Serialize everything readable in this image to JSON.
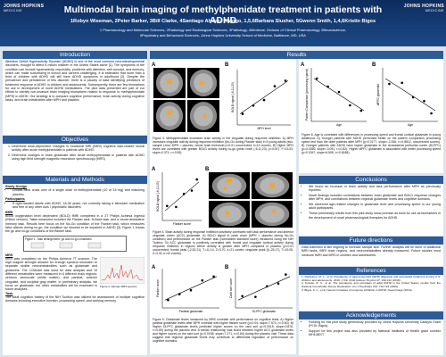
{
  "header": {
    "title": "Multimodal brain imaging of methylphenidate treatment in patients with ADHD",
    "authors": "1Robyn Wiseman, 2Peter Barker, 3Bill Clarke, 4Santiago Alvarez Arango, 1,5,6Barbara Slusher, 5Gwenn Smith, 1,4,6Kristin Bigos",
    "affiliations": [
      "1 Pharmacology and Molecular Sciences, 2Radiology and Radiological Sciences, 3Pathology, 4Medicine, Division of Clinical Pharmacology, 5Neuroscience,",
      "6Psychiatry and Behavioral Sciences, Johns Hopkins University School of Medicine, Baltimore, MD, USA"
    ],
    "logo": "JOHNS HOPKINS",
    "logo_sub": "MEDICINE"
  },
  "introduction": {
    "heading": "Introduction",
    "text": "Attention Deficit Hyperactivity Disorder (ADHD) is one of the most common neurodevelopmental disorders, thought to affect 6 million children in the United States alone [1]. The symptoms of the condition can include hyperactivity, impulsivity, problems with attention, self-concept, and memory, which can make succeeding in school and careers challenging. It is estimated that more than a third of children with ADHD will still have ADHD symptoms in adulthood [2]. Despite the prevalence and persistence of this disorder, there is a paucity of data identifying predictors of treatment response in ADHD in children and adolescents. Subsequently, there are few biomarkers for use in development of novel ADHD medications. The pilot data presented are part of our efforts to identify non-invasive brain imaging biomarkers related to response to methylphenidate (MPH) in ADHD. Our strategy is to compare cognitive performance, brain activity during cognitive tasks, and brain metabolites after MPH and placebo."
  },
  "objectives": {
    "heading": "Objectives",
    "items": [
      "Determine dose-dependent changes in functional MRI (fMRI) cognitive task-related neural activity after acute methylphenidate in patients with ADHD.",
      "Determine changes in brain glutamate after acute methylphenidate in patients with ADHD using high field strength magnetic resonance spectroscopy (MRS)."
    ]
  },
  "methods": {
    "heading": "Materials and Methods",
    "blocks": [
      {
        "title": "Study Design",
        "text": "Double-blind cross over of a single dose of methylphenidate (10 or 15 mg) and matching placebo."
      },
      {
        "title": "Participants",
        "text": "8 right-handed adults with ADHD, 18-36 years, not currently taking a stimulant medication and free of any other Axis I psychiatric disorders."
      },
      {
        "title": "fMRI",
        "text": "Blood oxygenation level dependent (BOLD) fMRI completed in a 3T Philips Achieva Ingenia (Elition version). Tasks measured included the Flanker task, N-Back task, and a visual declarative memory task. Results here focus on the No-Go condition of the Flanker task, which measures false alarms during no-go, the condition we showed to be impaired in ADHD [3]. Figure 1 shows the go and no-go conditions of the flanker task."
      },
      {
        "title": "MRS",
        "text": "MRS was completed on the Philips Achieva 7T scanner. The high magnet strength allowed for enough spectral resolution to separate similar neurometabolites such as glutamate and glutamine. The LCModel was used for data analysis and 15 different metabolites were measured in 6 different brain regions: centrum semiovale (white matter), and parietal, anterior cingulate, and occipital gray matter. In preliminary analysis, we focus on glutamate, but other metabolites will be examined in future analyses."
      },
      {
        "title": "Task",
        "text": "The adult cognition battery of the NIH Toolbox was utilized for assessment of multiple cognitive domains including executive function, processing speed, and working memory."
      }
    ],
    "figure1": "Figure 1. Task arrangement; go and no-go conditions",
    "figure2": "Figure 2. Sample MRS spectra."
  },
  "results": {
    "heading": "Results",
    "figure3": {
      "panels": [
        "A",
        "B"
      ],
      "y_label": "BOLD signal (-6,11,23)",
      "x_label": "MPH level",
      "caption": "Figure 3. Methylphenidate increases brain activity in the cingulate during response inhibition. A) MPH increases cingulate activity during response inhibition (No-Go during Flanker task) in 5 young adults (two-sample t-test, MPH > placebo, whole brain threshold p<0.01 uncorrected, k=10 voxels). B) Higher MPH levels are correlated with greater BOLD activity during no-go (peak voxel (-6,11,23), p=0.007, F=13.03, slope=0.374, r²=0.59)."
    },
    "figure4": {
      "panels": [
        "A",
        "B"
      ],
      "y_label": "BOLD signal (-6,11,23)",
      "x_label": "Flanker score",
      "caption": "Figure 4. Brain activity during response inhibition positively correlates with task performance and anterior cingulate cortex (ACC) glutamate. A) BOLD signal in peak voxel (MPH > placebo during No-Go condition) and performance on the Flanker task (normalized standard score) measured using the NIH Toolbox. B) ACC glutamate is positively correlated with frontal and cingulate cortical activity during response inhibition in regions where activity is greater after MPH compared to placebo (p<0.01 uncorrected; frontal peak (-2,30,21), T=11.14, Z=3.70, k=21 voxels; cingulate peak (6,-25,17), T=15.05, Z=3.30, k=42 voxels)."
    },
    "figure5": {
      "panels": [
        "A",
        "B"
      ],
      "y_labels": [
        "Flanker score",
        "Card sort score"
      ],
      "x_labels": [
        "Parietal glutamate",
        "DLPFC glutamate"
      ],
      "caption": "Figure 5. Glutamate levels measured by MRS correlate with performance on cognitive tests. A) Higher parietal glutamate levels after MPH correlate with higher flanker score (p=0.04, slope=7.574, r²=0.60). B) Higher DLPFC glutamate levels predicted higher scores on the card sort (p=0.0015, slope=0.876, r²=0.89) during the placebo visit. A similar relationship was found between higher ACC glutamate levels and higher scores on the card sort (p=0.0038, slope=7.271, r²=0.84) during the placebo visit. These data suggest that regional glutamate levels may contribute to differential regulation of performance on cognitive domains."
    },
    "figure6": {
      "panels": [
        "A",
        "B"
      ],
      "y_labels": [
        "Pattern Comparison (processing speed)",
        "dlPFC glutamate"
      ],
      "x_label": "Age",
      "caption": "Figure 6. Age is correlated with differences in processing speed and frontal cortical glutamate in young adulthood. A) Younger patients with ADHD performed better on the pattern comparison processing speed test than the older patients after MPH (p=0.0177, slope=-2.266, r²=0.8812, uncorrected scores). B) Younger patients with ADHD have higher glutamate in the dorsolateral prefrontal cortex (DLPFC) (p=0.0369, slope=-0.091, r²=0.82). Higher dlPFC glutamate is associated with better processing speed (p=0.0347, slope=6.508, r²=0.8188)."
    }
  },
  "conclusions": {
    "heading": "Conclusions",
    "items": [
      "We found an increase in brain activity and task performance after MPH as previously reported.",
      "Novel findings included correlations between brain glutamate and BOLD response changes after MPH, and correlations between regional glutamate levels and cognitive domains.",
      "We observed age-related changes in glutamate level and processing speed in our young adult participants.",
      "These preliminary results from this pilot study show promise as tools for use as biomarkers in the development of novel pharmacological therapies for ADHD."
    ]
  },
  "future": {
    "heading": "Future directions",
    "text": "Data collection is still ongoing to increase sample size. Further analysis will be done of additional fMRI tasks, fMRI brain regions, and neurometabolites already measured. Future studies must measure fMRI and MRS in children and adolescents."
  },
  "references": {
    "heading": "References",
    "items": [
      "1. Danielson, M. L., et al. Prevalence of parent-reported ADHD diagnosis and associated treatment among U.S. children and adolescents, 2016. J Clin Child Adolesc Psychol 47, 199-212 (2018).",
      "2. Kessler, R. C., et al. The prevalence and correlates of adult ADHD in the United States: results from the National Comorbidity Survey Replication. Am J Psychiatry 163, 716-723 (2006).",
      "3. Bigos, K. L., et al. Neural correlates of response inhibition in ADHD. NeuroImage (2019)."
    ]
  },
  "acknowledgements": {
    "heading": "Acknowledgements",
    "items": [
      "Funding for this pilot study generously provided by Johns Hopkins University Catalyst Grant (PI Dr. Bigos).",
      "Support for this project was also provided by National Institutes of Health grant number MH108077."
    ]
  }
}
